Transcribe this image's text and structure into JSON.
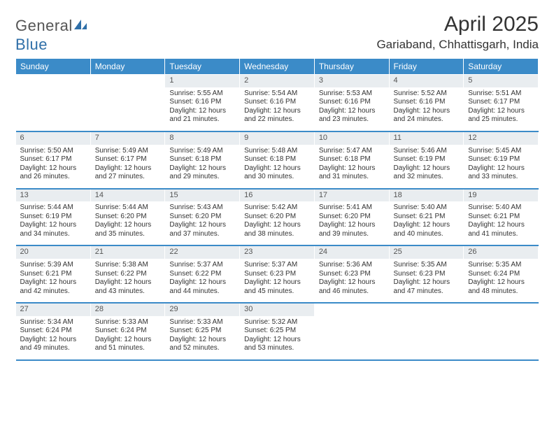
{
  "brand": {
    "part1": "General",
    "part2": "Blue"
  },
  "title": "April 2025",
  "location": "Gariaband, Chhattisgarh, India",
  "colors": {
    "header_bg": "#3b8bc8",
    "header_text": "#ffffff",
    "daynum_bg": "#e9edf0",
    "row_border": "#3b8bc8",
    "text": "#333333",
    "brand_accent": "#2f6fa8"
  },
  "dayHeaders": [
    "Sunday",
    "Monday",
    "Tuesday",
    "Wednesday",
    "Thursday",
    "Friday",
    "Saturday"
  ],
  "weeks": [
    [
      null,
      null,
      {
        "n": "1",
        "sr": "Sunrise: 5:55 AM",
        "ss": "Sunset: 6:16 PM",
        "dl": "Daylight: 12 hours and 21 minutes."
      },
      {
        "n": "2",
        "sr": "Sunrise: 5:54 AM",
        "ss": "Sunset: 6:16 PM",
        "dl": "Daylight: 12 hours and 22 minutes."
      },
      {
        "n": "3",
        "sr": "Sunrise: 5:53 AM",
        "ss": "Sunset: 6:16 PM",
        "dl": "Daylight: 12 hours and 23 minutes."
      },
      {
        "n": "4",
        "sr": "Sunrise: 5:52 AM",
        "ss": "Sunset: 6:16 PM",
        "dl": "Daylight: 12 hours and 24 minutes."
      },
      {
        "n": "5",
        "sr": "Sunrise: 5:51 AM",
        "ss": "Sunset: 6:17 PM",
        "dl": "Daylight: 12 hours and 25 minutes."
      }
    ],
    [
      {
        "n": "6",
        "sr": "Sunrise: 5:50 AM",
        "ss": "Sunset: 6:17 PM",
        "dl": "Daylight: 12 hours and 26 minutes."
      },
      {
        "n": "7",
        "sr": "Sunrise: 5:49 AM",
        "ss": "Sunset: 6:17 PM",
        "dl": "Daylight: 12 hours and 27 minutes."
      },
      {
        "n": "8",
        "sr": "Sunrise: 5:49 AM",
        "ss": "Sunset: 6:18 PM",
        "dl": "Daylight: 12 hours and 29 minutes."
      },
      {
        "n": "9",
        "sr": "Sunrise: 5:48 AM",
        "ss": "Sunset: 6:18 PM",
        "dl": "Daylight: 12 hours and 30 minutes."
      },
      {
        "n": "10",
        "sr": "Sunrise: 5:47 AM",
        "ss": "Sunset: 6:18 PM",
        "dl": "Daylight: 12 hours and 31 minutes."
      },
      {
        "n": "11",
        "sr": "Sunrise: 5:46 AM",
        "ss": "Sunset: 6:19 PM",
        "dl": "Daylight: 12 hours and 32 minutes."
      },
      {
        "n": "12",
        "sr": "Sunrise: 5:45 AM",
        "ss": "Sunset: 6:19 PM",
        "dl": "Daylight: 12 hours and 33 minutes."
      }
    ],
    [
      {
        "n": "13",
        "sr": "Sunrise: 5:44 AM",
        "ss": "Sunset: 6:19 PM",
        "dl": "Daylight: 12 hours and 34 minutes."
      },
      {
        "n": "14",
        "sr": "Sunrise: 5:44 AM",
        "ss": "Sunset: 6:20 PM",
        "dl": "Daylight: 12 hours and 35 minutes."
      },
      {
        "n": "15",
        "sr": "Sunrise: 5:43 AM",
        "ss": "Sunset: 6:20 PM",
        "dl": "Daylight: 12 hours and 37 minutes."
      },
      {
        "n": "16",
        "sr": "Sunrise: 5:42 AM",
        "ss": "Sunset: 6:20 PM",
        "dl": "Daylight: 12 hours and 38 minutes."
      },
      {
        "n": "17",
        "sr": "Sunrise: 5:41 AM",
        "ss": "Sunset: 6:20 PM",
        "dl": "Daylight: 12 hours and 39 minutes."
      },
      {
        "n": "18",
        "sr": "Sunrise: 5:40 AM",
        "ss": "Sunset: 6:21 PM",
        "dl": "Daylight: 12 hours and 40 minutes."
      },
      {
        "n": "19",
        "sr": "Sunrise: 5:40 AM",
        "ss": "Sunset: 6:21 PM",
        "dl": "Daylight: 12 hours and 41 minutes."
      }
    ],
    [
      {
        "n": "20",
        "sr": "Sunrise: 5:39 AM",
        "ss": "Sunset: 6:21 PM",
        "dl": "Daylight: 12 hours and 42 minutes."
      },
      {
        "n": "21",
        "sr": "Sunrise: 5:38 AM",
        "ss": "Sunset: 6:22 PM",
        "dl": "Daylight: 12 hours and 43 minutes."
      },
      {
        "n": "22",
        "sr": "Sunrise: 5:37 AM",
        "ss": "Sunset: 6:22 PM",
        "dl": "Daylight: 12 hours and 44 minutes."
      },
      {
        "n": "23",
        "sr": "Sunrise: 5:37 AM",
        "ss": "Sunset: 6:23 PM",
        "dl": "Daylight: 12 hours and 45 minutes."
      },
      {
        "n": "24",
        "sr": "Sunrise: 5:36 AM",
        "ss": "Sunset: 6:23 PM",
        "dl": "Daylight: 12 hours and 46 minutes."
      },
      {
        "n": "25",
        "sr": "Sunrise: 5:35 AM",
        "ss": "Sunset: 6:23 PM",
        "dl": "Daylight: 12 hours and 47 minutes."
      },
      {
        "n": "26",
        "sr": "Sunrise: 5:35 AM",
        "ss": "Sunset: 6:24 PM",
        "dl": "Daylight: 12 hours and 48 minutes."
      }
    ],
    [
      {
        "n": "27",
        "sr": "Sunrise: 5:34 AM",
        "ss": "Sunset: 6:24 PM",
        "dl": "Daylight: 12 hours and 49 minutes."
      },
      {
        "n": "28",
        "sr": "Sunrise: 5:33 AM",
        "ss": "Sunset: 6:24 PM",
        "dl": "Daylight: 12 hours and 51 minutes."
      },
      {
        "n": "29",
        "sr": "Sunrise: 5:33 AM",
        "ss": "Sunset: 6:25 PM",
        "dl": "Daylight: 12 hours and 52 minutes."
      },
      {
        "n": "30",
        "sr": "Sunrise: 5:32 AM",
        "ss": "Sunset: 6:25 PM",
        "dl": "Daylight: 12 hours and 53 minutes."
      },
      null,
      null,
      null
    ]
  ]
}
